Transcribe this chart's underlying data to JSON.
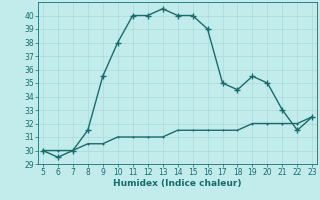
{
  "x": [
    5,
    6,
    7,
    8,
    9,
    10,
    11,
    12,
    13,
    14,
    15,
    16,
    17,
    18,
    19,
    20,
    21,
    22,
    23
  ],
  "y_main": [
    30,
    29.5,
    30,
    31.5,
    35.5,
    38,
    40,
    40,
    40.5,
    40,
    40,
    39,
    35,
    34.5,
    35.5,
    35,
    33,
    31.5,
    32.5
  ],
  "y_ref": [
    30,
    30,
    30,
    30.5,
    30.5,
    31,
    31,
    31,
    31,
    31.5,
    31.5,
    31.5,
    31.5,
    31.5,
    32,
    32,
    32,
    32,
    32.5
  ],
  "line_color": "#1a6b6b",
  "bg_color": "#c2ecec",
  "grid_color": "#aad8d8",
  "xlabel": "Humidex (Indice chaleur)",
  "ylim": [
    29,
    41
  ],
  "xlim": [
    4.7,
    23.3
  ],
  "yticks": [
    29,
    30,
    31,
    32,
    33,
    34,
    35,
    36,
    37,
    38,
    39,
    40
  ],
  "xticks": [
    5,
    6,
    7,
    8,
    9,
    10,
    11,
    12,
    13,
    14,
    15,
    16,
    17,
    18,
    19,
    20,
    21,
    22,
    23
  ],
  "marker": "+",
  "markersize": 4,
  "linewidth": 1.0,
  "tick_fontsize": 5.5,
  "xlabel_fontsize": 6.5
}
